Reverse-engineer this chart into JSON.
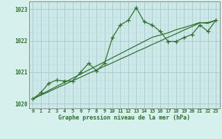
{
  "xlabel": "Graphe pression niveau de la mer (hPa)",
  "bg_color": "#d6f0ee",
  "plot_bg": "#cce8e8",
  "grid_major_color": "#aacccc",
  "grid_minor_color": "#bbdddd",
  "line_color": "#2d6e2d",
  "border_color": "#888888",
  "x": [
    0,
    1,
    2,
    3,
    4,
    5,
    6,
    7,
    8,
    9,
    10,
    11,
    12,
    13,
    14,
    15,
    16,
    17,
    18,
    19,
    20,
    21,
    22,
    23
  ],
  "y_main": [
    1020.15,
    1020.35,
    1020.65,
    1020.75,
    1020.72,
    1020.72,
    1021.0,
    1021.28,
    1021.05,
    1021.28,
    1022.1,
    1022.5,
    1022.65,
    1023.05,
    1022.6,
    1022.5,
    1022.3,
    1021.98,
    1021.98,
    1022.1,
    1022.2,
    1022.5,
    1022.3,
    1022.65
  ],
  "y_trend1": [
    1020.15,
    1020.27,
    1020.38,
    1020.5,
    1020.61,
    1020.73,
    1020.84,
    1020.96,
    1021.07,
    1021.19,
    1021.3,
    1021.42,
    1021.53,
    1021.65,
    1021.76,
    1021.88,
    1021.99,
    1022.11,
    1022.22,
    1022.34,
    1022.45,
    1022.57,
    1022.58,
    1022.65
  ],
  "y_trend2": [
    1020.15,
    1020.29,
    1020.42,
    1020.55,
    1020.68,
    1020.81,
    1020.94,
    1021.07,
    1021.2,
    1021.33,
    1021.46,
    1021.59,
    1021.72,
    1021.85,
    1021.98,
    1022.11,
    1022.18,
    1022.25,
    1022.35,
    1022.42,
    1022.5,
    1022.58,
    1022.55,
    1022.65
  ],
  "ylim": [
    1019.85,
    1023.25
  ],
  "yticks": [
    1020,
    1021,
    1022,
    1023
  ],
  "xticks": [
    0,
    1,
    2,
    3,
    4,
    5,
    6,
    7,
    8,
    9,
    10,
    11,
    12,
    13,
    14,
    15,
    16,
    17,
    18,
    19,
    20,
    21,
    22,
    23
  ],
  "tick_fontsize": 5.0,
  "xlabel_fontsize": 6.0
}
